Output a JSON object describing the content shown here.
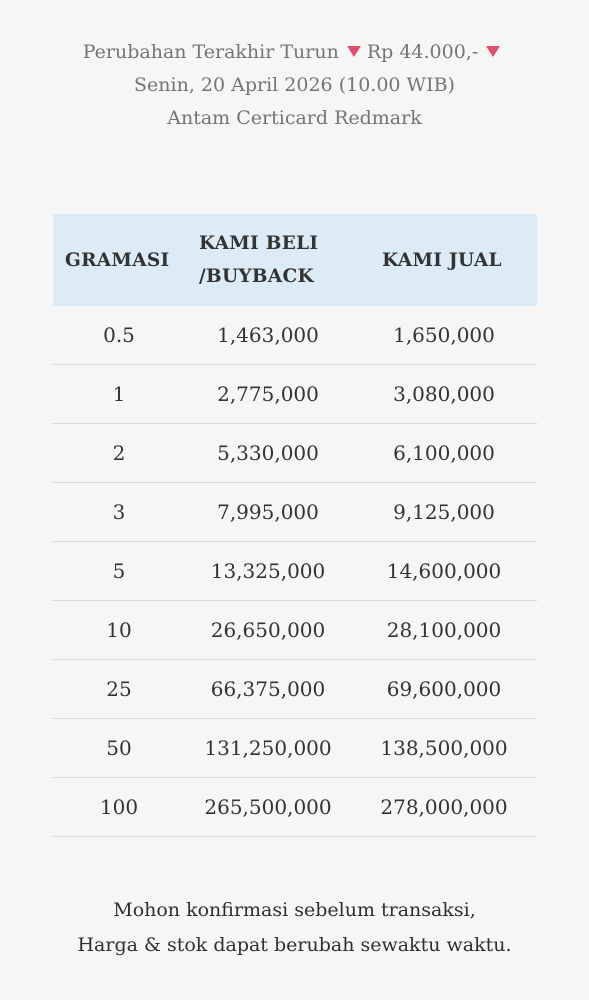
{
  "header": {
    "change_label": "Perubahan Terakhir Turun",
    "change_amount": "Rp 44.000,-",
    "date_line": "Senin, 20 April 2026 (10.00 WIB)",
    "product_line": "Antam Certicard Redmark",
    "indicator_color": "#e0506a"
  },
  "table": {
    "columns": [
      "GRAMASI",
      "KAMI BELI /BUYBACK",
      "KAMI JUAL"
    ],
    "header_lines": {
      "buyback_line1": "KAMI BELI",
      "buyback_line2": "/BUYBACK"
    },
    "header_bg": "#dcebf5",
    "rows": [
      {
        "gram": "0.5",
        "buy": "1,463,000",
        "sell": "1,650,000"
      },
      {
        "gram": "1",
        "buy": "2,775,000",
        "sell": "3,080,000"
      },
      {
        "gram": "2",
        "buy": "5,330,000",
        "sell": "6,100,000"
      },
      {
        "gram": "3",
        "buy": "7,995,000",
        "sell": "9,125,000"
      },
      {
        "gram": "5",
        "buy": "13,325,000",
        "sell": "14,600,000"
      },
      {
        "gram": "10",
        "buy": "26,650,000",
        "sell": "28,100,000"
      },
      {
        "gram": "25",
        "buy": "66,375,000",
        "sell": "69,600,000"
      },
      {
        "gram": "50",
        "buy": "131,250,000",
        "sell": "138,500,000"
      },
      {
        "gram": "100",
        "buy": "265,500,000",
        "sell": "278,000,000"
      }
    ]
  },
  "footer": {
    "line1": "Mohon konfirmasi sebelum transaksi,",
    "line2": "Harga & stok dapat berubah sewaktu waktu."
  }
}
